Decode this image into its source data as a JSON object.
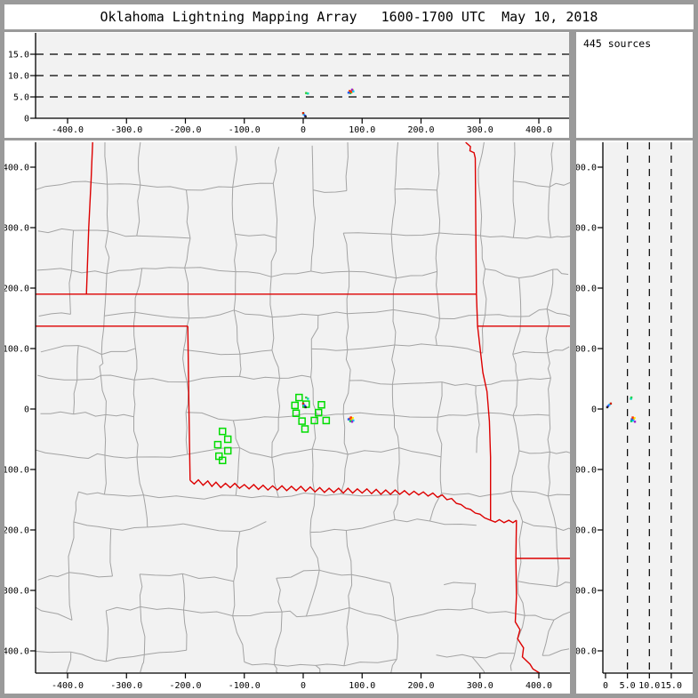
{
  "title": "Oklahoma Lightning Mapping Array   1600-1700 UTC  May 10, 2018",
  "info_box": {
    "sources_label": "445 sources"
  },
  "colors": {
    "frame_gray": "#9a9a9a",
    "panel_bg": "#ffffff",
    "plot_bg": "#f2f2f2",
    "axis": "#000000",
    "county_line": "#a3a3a3",
    "state_border": "#dd0000",
    "station_green": "#00dd00"
  },
  "chart_data": {
    "type": "scatter",
    "title": "Oklahoma Lightning Mapping Array   1600-1700 UTC  May 10, 2018",
    "source_count": 445,
    "panels": {
      "top": {
        "description": "altitude (km) vs east-west distance (km)",
        "xlim": [
          -455,
          455
        ],
        "alt_lim": [
          0,
          20
        ],
        "x_ticks": [
          -400,
          -300,
          -200,
          -100,
          0,
          100,
          200,
          300,
          400
        ],
        "x_tick_labels": [
          "-400.0",
          "-300.0",
          "-200.0",
          "-100.0",
          "0",
          "100.0",
          "200.0",
          "300.0",
          "400.0"
        ],
        "alt_ticks": [
          0,
          5,
          10,
          15
        ],
        "alt_tick_labels": [
          "0",
          "5.0",
          "10.0",
          "15.0"
        ],
        "gridlines_alt_km": [
          5,
          10,
          15
        ]
      },
      "map": {
        "description": "plan view, north-south (km) vs east-west (km)",
        "xlim": [
          -455,
          455
        ],
        "ylim": [
          -437,
          441
        ],
        "x_ticks": [
          -400,
          -300,
          -200,
          -100,
          0,
          100,
          200,
          300,
          400
        ],
        "x_tick_labels": [
          "-400.0",
          "-300.0",
          "-200.0",
          "-100.0",
          "0",
          "100.0",
          "200.0",
          "300.0",
          "400.0"
        ],
        "y_ticks": [
          400,
          300,
          200,
          100,
          0,
          -100,
          -200,
          -300,
          -400
        ],
        "y_tick_labels": [
          "400.0",
          "300.0",
          "200.0",
          "100.0",
          "0",
          "-100.0",
          "-200.0",
          "-300.0",
          "-400.0"
        ]
      },
      "right": {
        "description": "north-south distance (km) vs altitude (km)",
        "alt_lim": [
          0,
          20
        ],
        "ylim": [
          -437,
          441
        ],
        "alt_ticks": [
          0,
          5,
          10,
          15
        ],
        "alt_tick_labels": [
          "0",
          "5.0",
          "10.0",
          "15.0"
        ],
        "y_ticks": [
          400,
          300,
          200,
          100,
          0,
          -100,
          -200,
          -300,
          -400
        ],
        "y_tick_labels": [
          "400.0",
          "300.0",
          "200.0",
          "100.0",
          "0",
          "-100.0",
          "-200.0",
          "-300.0",
          "-400.0"
        ],
        "gridlines_alt_km": [
          5,
          10,
          15
        ]
      }
    },
    "stations_km": [
      [
        -7,
        19
      ],
      [
        -14,
        6
      ],
      [
        5,
        8
      ],
      [
        31,
        7
      ],
      [
        -12,
        -7
      ],
      [
        26,
        -6
      ],
      [
        -2,
        -20
      ],
      [
        19,
        -19
      ],
      [
        39,
        -19
      ],
      [
        3,
        -33
      ],
      [
        -137,
        -37
      ],
      [
        -128,
        -50
      ],
      [
        -145,
        -59
      ],
      [
        -128,
        -69
      ],
      [
        -143,
        -78
      ],
      [
        -137,
        -85
      ]
    ],
    "sources": [
      {
        "x": 79,
        "y": -16,
        "alt": 6.4,
        "c": "#ff3300"
      },
      {
        "x": 82,
        "y": -18,
        "alt": 6.1,
        "c": "#ff9900"
      },
      {
        "x": 84,
        "y": -15,
        "alt": 6.6,
        "c": "#ffee00"
      },
      {
        "x": 80,
        "y": -20,
        "alt": 5.9,
        "c": "#00cc55"
      },
      {
        "x": 85,
        "y": -19,
        "alt": 6.3,
        "c": "#00ccff"
      },
      {
        "x": 77,
        "y": -17,
        "alt": 6.0,
        "c": "#2255ee"
      },
      {
        "x": 83,
        "y": -21,
        "alt": 6.7,
        "c": "#9922cc"
      },
      {
        "x": 81,
        "y": -14,
        "alt": 6.2,
        "c": "#ff3300"
      },
      {
        "x": 5,
        "y": 19,
        "alt": 5.9,
        "c": "#33cc33"
      },
      {
        "x": 8,
        "y": 17,
        "alt": 5.8,
        "c": "#00ddaa"
      },
      {
        "x": 1,
        "y": 7,
        "alt": 0.9,
        "c": "#00ccff"
      },
      {
        "x": 3,
        "y": 5,
        "alt": 0.6,
        "c": "#3344ff"
      },
      {
        "x": 0,
        "y": 9,
        "alt": 1.2,
        "c": "#cc2200"
      },
      {
        "x": 4,
        "y": 3,
        "alt": 0.4,
        "c": "#222222"
      }
    ],
    "state_borders_km": [
      [
        [
          -357,
          452
        ],
        [
          -360,
          380
        ],
        [
          -364,
          300
        ],
        [
          -368,
          190
        ]
      ],
      [
        [
          -455,
          190
        ],
        [
          294,
          190
        ]
      ],
      [
        [
          258,
          452
        ],
        [
          265,
          446
        ],
        [
          272,
          447
        ],
        [
          277,
          440
        ],
        [
          284,
          434
        ],
        [
          283,
          427
        ],
        [
          290,
          424
        ],
        [
          292,
          415
        ],
        [
          293,
          300
        ],
        [
          294,
          190
        ]
      ],
      [
        [
          294,
          190
        ],
        [
          296,
          137
        ],
        [
          455,
          137
        ]
      ],
      [
        [
          296,
          137
        ],
        [
          305,
          60
        ],
        [
          312,
          29
        ],
        [
          316,
          -20
        ],
        [
          318,
          -80
        ],
        [
          318,
          -130
        ],
        [
          318,
          -184
        ]
      ],
      [
        [
          -455,
          137
        ],
        [
          -196,
          137
        ]
      ],
      [
        [
          -196,
          137
        ],
        [
          -194,
          0
        ],
        [
          -192,
          -118
        ]
      ],
      [
        [
          -192,
          -118
        ],
        [
          -185,
          -124
        ],
        [
          -178,
          -117
        ],
        [
          -170,
          -126
        ],
        [
          -162,
          -119
        ],
        [
          -155,
          -128
        ],
        [
          -148,
          -121
        ],
        [
          -140,
          -130
        ],
        [
          -132,
          -123
        ],
        [
          -124,
          -130
        ],
        [
          -116,
          -123
        ],
        [
          -108,
          -131
        ],
        [
          -100,
          -125
        ],
        [
          -92,
          -132
        ],
        [
          -84,
          -125
        ],
        [
          -76,
          -133
        ],
        [
          -68,
          -126
        ],
        [
          -60,
          -134
        ],
        [
          -52,
          -127
        ],
        [
          -44,
          -134
        ],
        [
          -36,
          -127
        ],
        [
          -28,
          -135
        ],
        [
          -20,
          -128
        ],
        [
          -12,
          -135
        ],
        [
          -4,
          -128
        ],
        [
          4,
          -136
        ],
        [
          12,
          -129
        ],
        [
          20,
          -137
        ],
        [
          28,
          -130
        ],
        [
          36,
          -138
        ],
        [
          44,
          -131
        ],
        [
          52,
          -138
        ],
        [
          60,
          -131
        ],
        [
          68,
          -139
        ],
        [
          76,
          -131
        ],
        [
          84,
          -139
        ],
        [
          92,
          -132
        ],
        [
          100,
          -139
        ],
        [
          108,
          -132
        ],
        [
          116,
          -140
        ],
        [
          124,
          -133
        ],
        [
          132,
          -141
        ],
        [
          140,
          -134
        ],
        [
          148,
          -141
        ],
        [
          156,
          -134
        ],
        [
          164,
          -141
        ],
        [
          172,
          -135
        ],
        [
          180,
          -142
        ],
        [
          188,
          -136
        ],
        [
          196,
          -142
        ],
        [
          204,
          -137
        ],
        [
          212,
          -144
        ],
        [
          220,
          -139
        ],
        [
          228,
          -146
        ],
        [
          236,
          -142
        ],
        [
          244,
          -150
        ],
        [
          252,
          -148
        ],
        [
          260,
          -156
        ],
        [
          268,
          -158
        ],
        [
          276,
          -164
        ],
        [
          284,
          -166
        ],
        [
          292,
          -172
        ],
        [
          300,
          -174
        ],
        [
          308,
          -180
        ],
        [
          318,
          -184
        ]
      ],
      [
        [
          318,
          -184
        ],
        [
          326,
          -187
        ],
        [
          333,
          -183
        ],
        [
          341,
          -188
        ],
        [
          349,
          -184
        ],
        [
          356,
          -188
        ],
        [
          362,
          -184
        ]
      ],
      [
        [
          362,
          -184
        ],
        [
          361,
          -247
        ]
      ],
      [
        [
          361,
          -247
        ],
        [
          455,
          -247
        ]
      ],
      [
        [
          361,
          -247
        ],
        [
          362,
          -310
        ],
        [
          360,
          -352
        ],
        [
          368,
          -365
        ],
        [
          364,
          -380
        ],
        [
          374,
          -395
        ],
        [
          372,
          -410
        ],
        [
          385,
          -422
        ],
        [
          390,
          -430
        ],
        [
          402,
          -437
        ]
      ]
    ],
    "county_grid": {
      "seed": 20180510,
      "dx": 47,
      "dy": 45,
      "jitter": 6,
      "skip": 0.15,
      "south_extra": 1.7
    }
  }
}
